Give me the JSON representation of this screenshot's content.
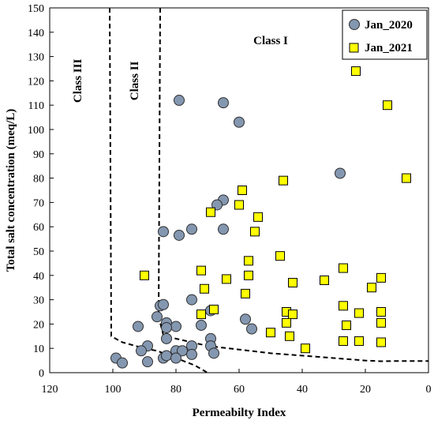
{
  "chart_data": {
    "type": "scatter",
    "xlabel": "Permeabilty Index",
    "ylabel": "Total salt concentration (meq/L)",
    "xlim": [
      120,
      0
    ],
    "ylim": [
      0,
      150
    ],
    "x_reversed": true,
    "x_ticks": [
      120,
      100,
      80,
      60,
      40,
      20,
      0
    ],
    "y_ticks": [
      0,
      10,
      20,
      30,
      40,
      50,
      60,
      70,
      80,
      90,
      100,
      110,
      120,
      130,
      140,
      150
    ],
    "grid": false,
    "legend_position": "top-right",
    "region_labels": [
      {
        "text": "Class III",
        "x": 110,
        "y": 120,
        "rotated": true
      },
      {
        "text": "Class II",
        "x": 92,
        "y": 120,
        "rotated": true
      },
      {
        "text": "Class I",
        "x": 50,
        "y": 135,
        "rotated": false
      }
    ],
    "boundaries": [
      {
        "name": "class-iii-boundary",
        "points": [
          [
            101,
            150
          ],
          [
            100.5,
            15
          ],
          [
            97,
            12.5
          ],
          [
            90,
            10
          ],
          [
            86,
            9
          ],
          [
            82,
            7
          ],
          [
            78,
            5
          ],
          [
            74,
            3
          ],
          [
            70,
            0
          ]
        ]
      },
      {
        "name": "class-ii-boundary",
        "points": [
          [
            85,
            150
          ],
          [
            85.5,
            23
          ],
          [
            84,
            15.5
          ],
          [
            80,
            14
          ],
          [
            75,
            12.5
          ],
          [
            70,
            11
          ],
          [
            60,
            9.5
          ],
          [
            50,
            8
          ],
          [
            40,
            7
          ],
          [
            30,
            6
          ],
          [
            20,
            5
          ],
          [
            15,
            4.7
          ],
          [
            10,
            4.8
          ],
          [
            0,
            4.8
          ]
        ]
      }
    ],
    "series": [
      {
        "name": "Jan_2020",
        "marker": "circle",
        "color": "#8497b0",
        "points": [
          [
            79,
            112
          ],
          [
            65,
            111
          ],
          [
            60,
            103
          ],
          [
            28,
            82
          ],
          [
            65,
            71
          ],
          [
            67,
            69
          ],
          [
            84,
            58
          ],
          [
            75,
            59
          ],
          [
            65,
            59
          ],
          [
            79,
            56.5
          ],
          [
            85,
            27.5
          ],
          [
            84,
            28
          ],
          [
            75,
            30
          ],
          [
            69,
            25.5
          ],
          [
            58,
            22
          ],
          [
            56,
            18
          ],
          [
            92,
            19
          ],
          [
            86,
            23
          ],
          [
            83,
            20.5
          ],
          [
            80,
            19
          ],
          [
            83,
            18.5
          ],
          [
            72,
            19.5
          ],
          [
            83,
            14
          ],
          [
            69,
            14
          ],
          [
            89,
            11
          ],
          [
            80,
            9
          ],
          [
            78,
            9
          ],
          [
            75,
            11
          ],
          [
            69,
            11
          ],
          [
            68,
            8
          ],
          [
            99,
            6
          ],
          [
            97,
            4
          ],
          [
            91,
            9
          ],
          [
            89,
            4.5
          ],
          [
            84,
            6
          ],
          [
            83,
            7
          ],
          [
            80,
            6
          ],
          [
            75,
            7.5
          ]
        ]
      },
      {
        "name": "Jan_2021",
        "marker": "square",
        "color": "#ffff00",
        "points": [
          [
            23,
            124
          ],
          [
            13,
            110
          ],
          [
            7,
            80
          ],
          [
            46,
            79
          ],
          [
            59,
            75
          ],
          [
            60,
            69
          ],
          [
            54,
            64
          ],
          [
            69,
            66
          ],
          [
            55,
            58
          ],
          [
            47,
            48
          ],
          [
            57,
            46
          ],
          [
            27,
            43
          ],
          [
            72,
            42
          ],
          [
            90,
            40
          ],
          [
            57,
            40
          ],
          [
            15,
            39
          ],
          [
            64,
            38.5
          ],
          [
            33,
            38
          ],
          [
            43,
            37
          ],
          [
            18,
            35
          ],
          [
            71,
            34.5
          ],
          [
            58,
            32.5
          ],
          [
            27,
            27.5
          ],
          [
            68,
            26
          ],
          [
            45,
            25
          ],
          [
            43,
            24
          ],
          [
            22,
            24.5
          ],
          [
            15,
            25
          ],
          [
            72,
            24
          ],
          [
            45,
            20.5
          ],
          [
            26,
            19.5
          ],
          [
            15,
            20.5
          ],
          [
            50,
            16.5
          ],
          [
            44,
            15
          ],
          [
            27,
            13
          ],
          [
            22,
            13
          ],
          [
            15,
            12.5
          ],
          [
            39,
            10
          ]
        ]
      }
    ]
  }
}
